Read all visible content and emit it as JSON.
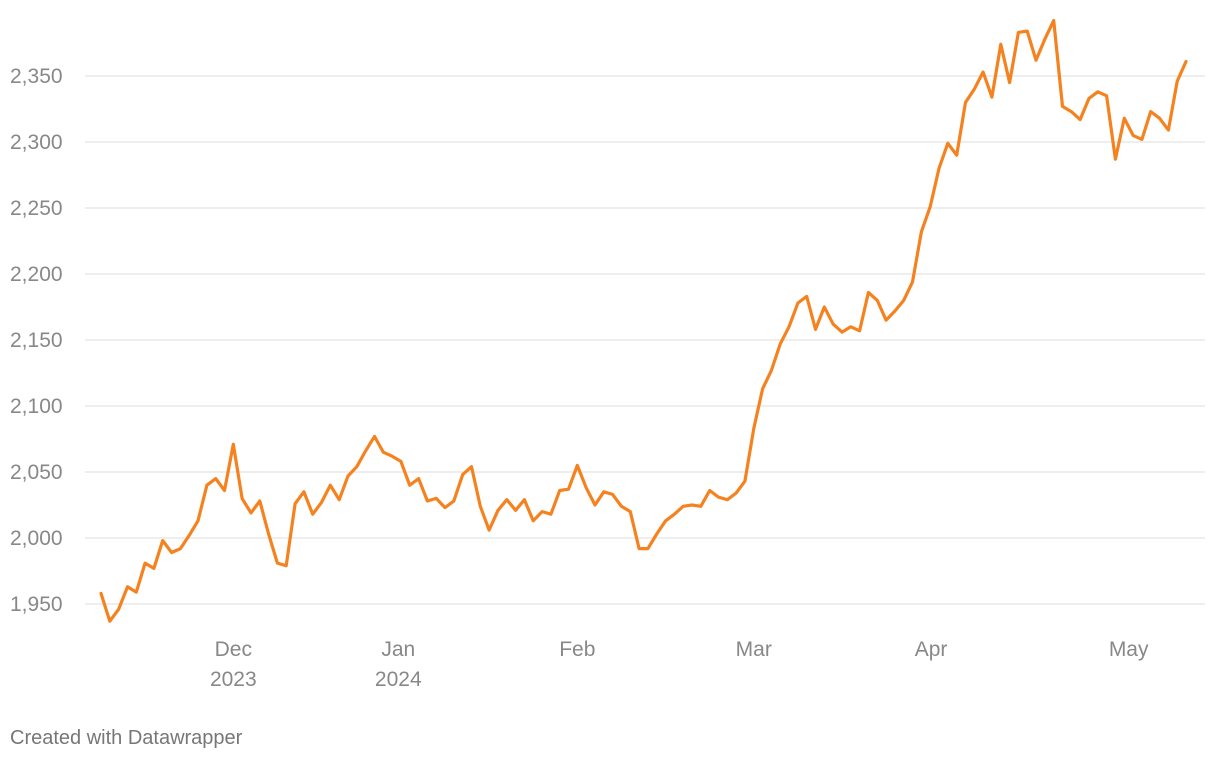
{
  "chart_data": {
    "type": "line",
    "categories": [
      null,
      null,
      null,
      null,
      null,
      null,
      null,
      null,
      null,
      null,
      null,
      null,
      null,
      null,
      null,
      null,
      null,
      null,
      null,
      null,
      null,
      null,
      null,
      null,
      null,
      null,
      null,
      null,
      null,
      null,
      null,
      null,
      null,
      null,
      null,
      null,
      null,
      null,
      null,
      null,
      null,
      null,
      null,
      null,
      null,
      null,
      null,
      null,
      null,
      null,
      null,
      null,
      null,
      null,
      null,
      null,
      null,
      null,
      null,
      null,
      null,
      null,
      null,
      null,
      null,
      null,
      null,
      null,
      null,
      null,
      null,
      null,
      null,
      null,
      null,
      null,
      null,
      null,
      null,
      null,
      null,
      null,
      null,
      null,
      null,
      null,
      null,
      null,
      null,
      null,
      null,
      null,
      null,
      null,
      null,
      null,
      null,
      null,
      null,
      null,
      null,
      null,
      null,
      null,
      null,
      null,
      null,
      null,
      null,
      null,
      null,
      null,
      null,
      null,
      null,
      null,
      null,
      null,
      null,
      null,
      null,
      null,
      null,
      null
    ],
    "series": [
      {
        "color": "#f5821f",
        "values": [
          1958,
          1937,
          1946,
          1963,
          1959,
          1981,
          1977,
          1998,
          1989,
          1992,
          2002,
          2013,
          2040,
          2045,
          2036,
          2071,
          2030,
          2019,
          2028,
          2003,
          1981,
          1979,
          2026,
          2035,
          2018,
          2027,
          2040,
          2029,
          2047,
          2054,
          2066,
          2077,
          2065,
          2062,
          2058,
          2040,
          2045,
          2028,
          2030,
          2023,
          2028,
          2048,
          2054,
          2024,
          2006,
          2021,
          2029,
          2021,
          2029,
          2013,
          2020,
          2018,
          2036,
          2037,
          2055,
          2038,
          2025,
          2035,
          2033,
          2024,
          2020,
          1992,
          1992,
          2003,
          2013,
          2018,
          2024,
          2025,
          2024,
          2036,
          2031,
          2029,
          2034,
          2043,
          2083,
          2113,
          2127,
          2147,
          2160,
          2178,
          2183,
          2158,
          2175,
          2162,
          2156,
          2160,
          2157,
          2186,
          2180,
          2165,
          2172,
          2180,
          2194,
          2232,
          2251,
          2280,
          2299,
          2290,
          2330,
          2340,
          2353,
          2334,
          2374,
          2345,
          2383,
          2384,
          2362,
          2378,
          2392,
          2327,
          2323,
          2317,
          2333,
          2338,
          2335,
          2287,
          2318,
          2305,
          2302,
          2323,
          2318,
          2309,
          2346,
          2361
        ]
      }
    ],
    "xlim": [
      0,
      123
    ],
    "xticks": [
      {
        "value": 15,
        "label": "Dec 2023"
      },
      {
        "value": 33.7,
        "label": "Jan 2024"
      },
      {
        "value": 54,
        "label": "Feb"
      },
      {
        "value": 74,
        "label": "Mar"
      },
      {
        "value": 94.1,
        "label": "Apr"
      },
      {
        "value": 116.5,
        "label": "May"
      }
    ],
    "ylim": [
      1935,
      2395
    ],
    "yticks": [
      {
        "value": 1950,
        "label": "1,950"
      },
      {
        "value": 2000,
        "label": "2,000"
      },
      {
        "value": 2050,
        "label": "2,050"
      },
      {
        "value": 2100,
        "label": "2,100"
      },
      {
        "value": 2150,
        "label": "2,150"
      },
      {
        "value": 2200,
        "label": "2,200"
      },
      {
        "value": 2250,
        "label": "2,250"
      },
      {
        "value": 2300,
        "label": "2,300"
      },
      {
        "value": 2350,
        "label": "2,350"
      }
    ],
    "grid": true,
    "footer": "Created with Datawrapper"
  }
}
